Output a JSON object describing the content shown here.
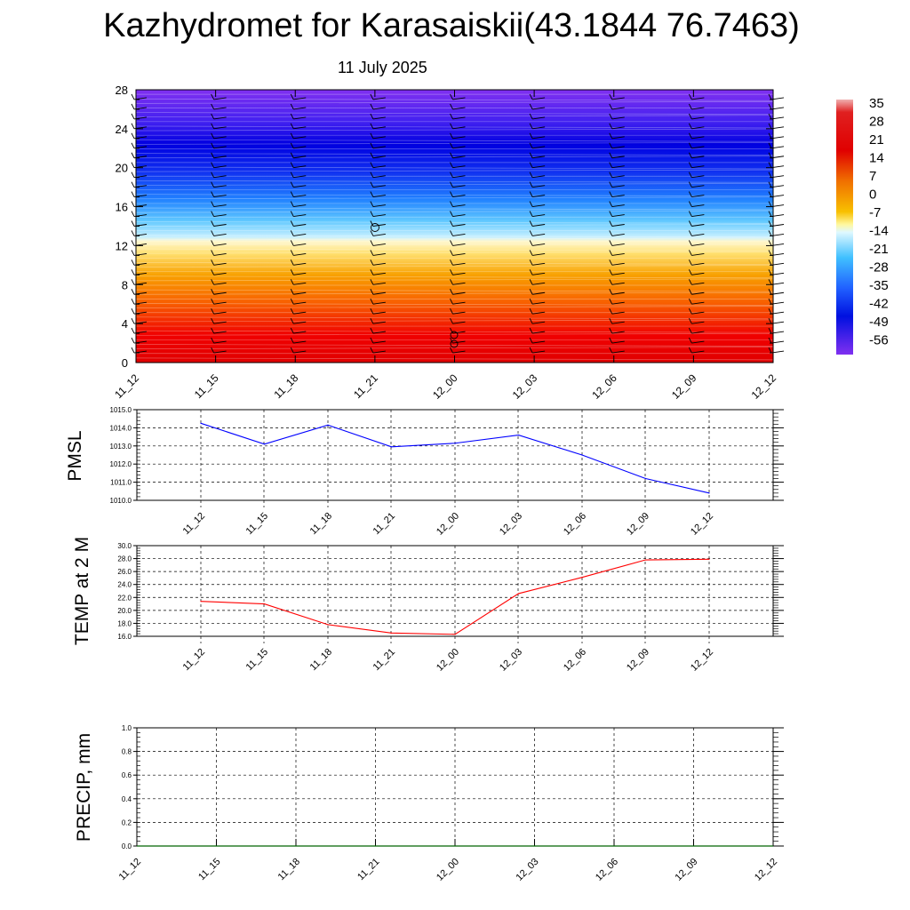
{
  "title": "Kazhydromet for Karasaiskii(43.1844 76.7463)",
  "subtitle": "11 July 2025",
  "chart_data": [
    {
      "type": "heatmap",
      "name": "temperature-cross-section",
      "x_labels": [
        "11_12",
        "11_15",
        "11_18",
        "11_21",
        "12_00",
        "12_03",
        "12_06",
        "12_09",
        "12_12"
      ],
      "y_ticks": [
        0,
        4,
        8,
        12,
        16,
        20,
        24,
        28
      ],
      "ylim": [
        0,
        28
      ],
      "colorbar": {
        "labels": [
          "35",
          "28",
          "21",
          "14",
          "7",
          "0",
          "-7",
          "-14",
          "-21",
          "-28",
          "-35",
          "-42",
          "-49",
          "-56"
        ],
        "colors": [
          "#d20000",
          "#f0a000",
          "#fff8c8",
          "#a0e0ff",
          "#2060ff",
          "#0000e0",
          "#8030f0"
        ]
      },
      "freezing_level_approx": 12.5
    },
    {
      "type": "line",
      "ylabel": "PMSL",
      "x_labels": [
        "11_12",
        "11_15",
        "11_18",
        "11_21",
        "12_00",
        "12_03",
        "12_06",
        "12_09",
        "12_12"
      ],
      "y_ticks": [
        "1010.0",
        "1011.0",
        "1012.0",
        "1013.0",
        "1014.0",
        "1015.0"
      ],
      "ylim": [
        1010,
        1015
      ],
      "color": "#0000ff",
      "values": [
        1014.25,
        1013.1,
        1014.15,
        1012.95,
        1013.15,
        1013.6,
        1012.5,
        1011.2,
        1010.4
      ]
    },
    {
      "type": "line",
      "ylabel": "TEMP at 2 M",
      "x_labels": [
        "11_12",
        "11_15",
        "11_18",
        "11_21",
        "12_00",
        "12_03",
        "12_06",
        "12_09",
        "12_12"
      ],
      "y_ticks": [
        "16.0",
        "18.0",
        "20.0",
        "22.0",
        "24.0",
        "26.0",
        "28.0",
        "30.0"
      ],
      "ylim": [
        16,
        30
      ],
      "color": "#ff0000",
      "values": [
        21.4,
        21.0,
        17.8,
        16.5,
        16.3,
        22.6,
        25.1,
        27.8,
        27.9
      ]
    },
    {
      "type": "line",
      "ylabel": "PRECIP, mm",
      "x_labels": [
        "11_12",
        "11_15",
        "11_18",
        "11_21",
        "12_00",
        "12_03",
        "12_06",
        "12_09",
        "12_12"
      ],
      "y_ticks": [
        "0.0",
        "0.2",
        "0.4",
        "0.6",
        "0.8",
        "1.0"
      ],
      "ylim": [
        0,
        1
      ],
      "color": "#006400",
      "values": [
        0,
        0,
        0,
        0,
        0,
        0,
        0,
        0,
        0
      ]
    }
  ]
}
